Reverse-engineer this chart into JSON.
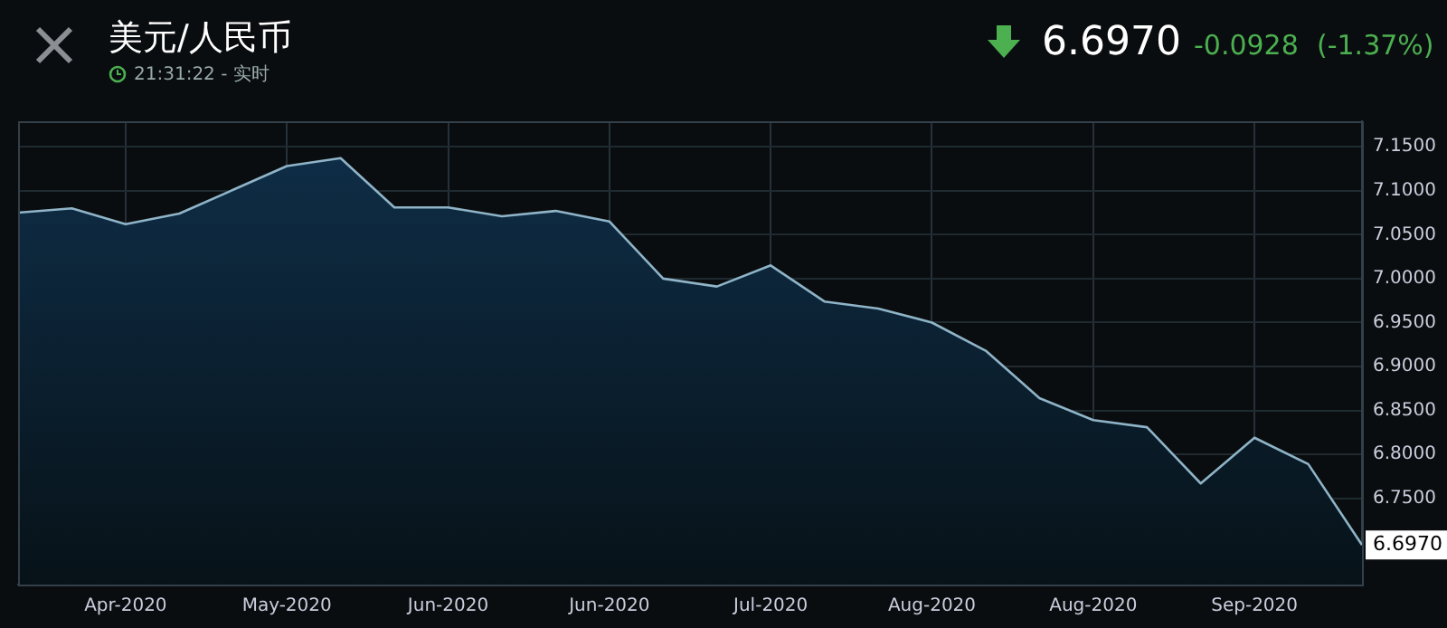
{
  "chart_data": {
    "type": "area",
    "title": "美元/人民币",
    "subtitle": "21:31:22 - 实时",
    "annotations": [
      "6.6970",
      "-0.0928",
      "(-1.37%)",
      "6.6970"
    ],
    "categories": [
      null,
      null,
      "Apr-2020",
      null,
      null,
      "May-2020",
      null,
      null,
      "Jun-2020",
      null,
      null,
      "Jun-2020",
      null,
      null,
      "Jul-2020",
      null,
      null,
      "Aug-2020",
      null,
      null,
      "Aug-2020",
      null,
      null,
      "Sep-2020",
      null,
      null
    ],
    "series": [
      {
        "color": "#8fb4c8",
        "values": [
          7.075,
          7.08,
          7.062,
          7.074,
          7.101,
          7.128,
          7.137,
          7.081,
          7.081,
          7.071,
          7.077,
          7.065,
          7.0,
          6.991,
          7.015,
          6.974,
          6.966,
          6.95,
          6.918,
          6.864,
          6.839,
          6.831,
          6.767,
          6.819,
          6.789,
          6.697
        ]
      }
    ],
    "ylim": [
      6.652,
      7.179
    ],
    "yticks": [
      {
        "value": 6.75,
        "label": "6.7500"
      },
      {
        "value": 6.8,
        "label": "6.8000"
      },
      {
        "value": 6.85,
        "label": "6.8500"
      },
      {
        "value": 6.9,
        "label": "6.9000"
      },
      {
        "value": 6.95,
        "label": "6.9500"
      },
      {
        "value": 7.0,
        "label": "7.0000"
      },
      {
        "value": 7.05,
        "label": "7.0500"
      },
      {
        "value": 7.1,
        "label": "7.1000"
      },
      {
        "value": 7.15,
        "label": "7.1500"
      }
    ],
    "grid": true,
    "legend": false,
    "marker": "none",
    "line_style": "solid"
  }
}
